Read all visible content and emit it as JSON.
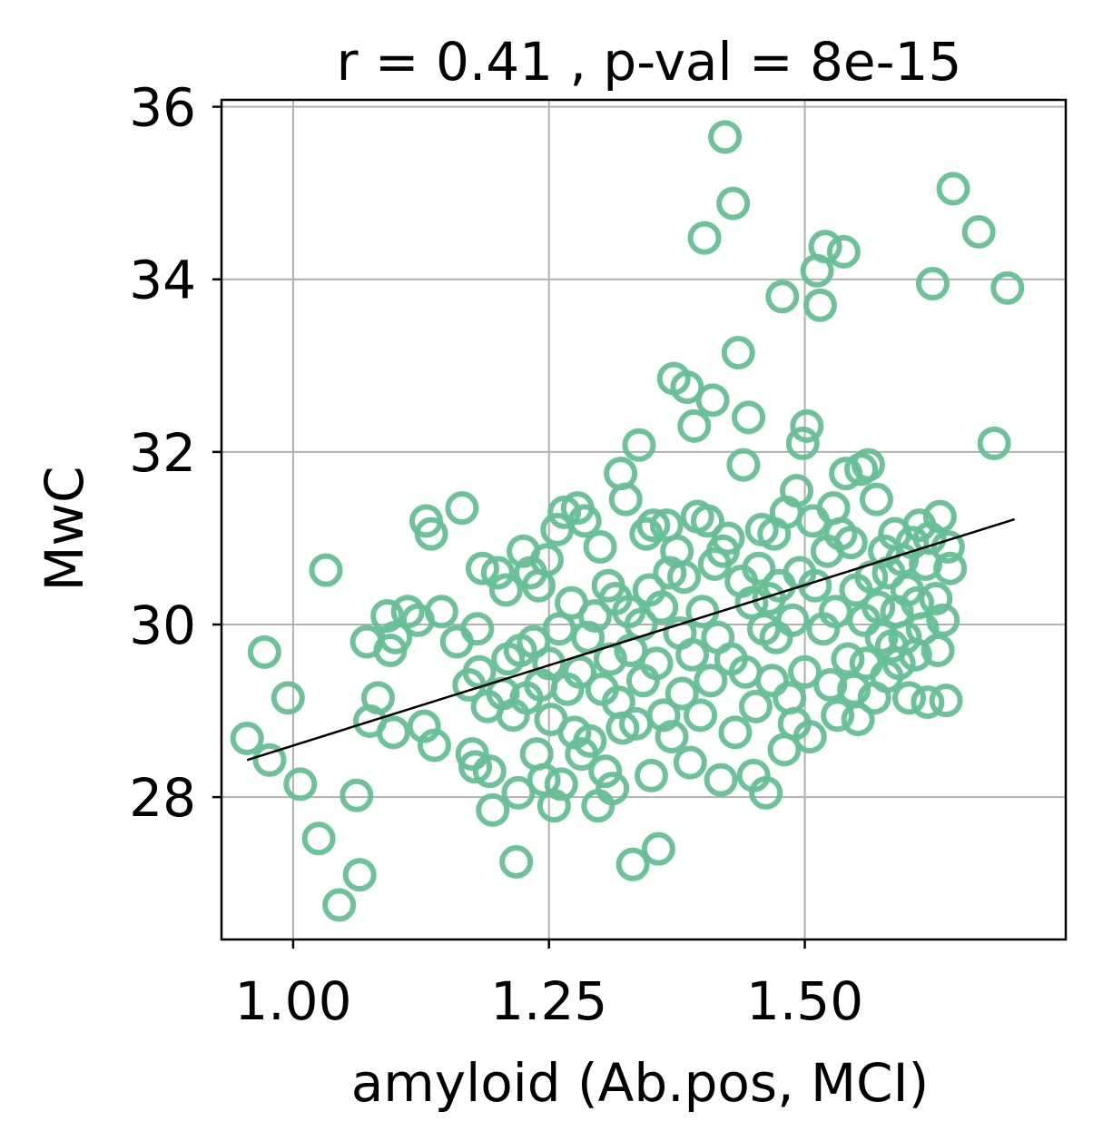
{
  "chart_data": {
    "type": "scatter",
    "title": "r = 0.41 , p-val = 8e-15",
    "xlabel": "amyloid (Ab.pos, MCI)",
    "ylabel": "MwC",
    "xlim": [
      0.93,
      1.755
    ],
    "ylim": [
      26.35,
      36.08
    ],
    "xticks": [
      1.0,
      1.25,
      1.5
    ],
    "xtick_labels": [
      "1.00",
      "1.25",
      "1.50"
    ],
    "yticks": [
      28,
      30,
      32,
      34,
      36
    ],
    "ytick_labels": [
      "28",
      "30",
      "32",
      "34",
      "36"
    ],
    "grid": true,
    "marker_color": "#66bf94",
    "line_color": "#000000",
    "fit_line": {
      "x": [
        0.955,
        1.705
      ],
      "y": [
        28.43,
        31.22
      ]
    },
    "points": [
      [
        0.955,
        28.68
      ],
      [
        0.972,
        29.68
      ],
      [
        0.977,
        28.43
      ],
      [
        0.995,
        29.15
      ],
      [
        1.007,
        28.15
      ],
      [
        1.025,
        27.52
      ],
      [
        1.032,
        30.63
      ],
      [
        1.045,
        26.75
      ],
      [
        1.062,
        28.02
      ],
      [
        1.065,
        27.1
      ],
      [
        1.072,
        29.8
      ],
      [
        1.075,
        28.88
      ],
      [
        1.083,
        29.15
      ],
      [
        1.092,
        30.1
      ],
      [
        1.095,
        29.7
      ],
      [
        1.098,
        28.75
      ],
      [
        1.1,
        29.85
      ],
      [
        1.112,
        30.15
      ],
      [
        1.122,
        30.05
      ],
      [
        1.128,
        28.82
      ],
      [
        1.13,
        31.2
      ],
      [
        1.135,
        31.05
      ],
      [
        1.138,
        28.6
      ],
      [
        1.145,
        30.15
      ],
      [
        1.16,
        29.8
      ],
      [
        1.165,
        31.35
      ],
      [
        1.172,
        29.3
      ],
      [
        1.175,
        28.5
      ],
      [
        1.178,
        28.35
      ],
      [
        1.18,
        29.95
      ],
      [
        1.182,
        29.45
      ],
      [
        1.185,
        30.65
      ],
      [
        1.19,
        29.05
      ],
      [
        1.192,
        28.3
      ],
      [
        1.195,
        27.85
      ],
      [
        1.2,
        30.6
      ],
      [
        1.205,
        29.2
      ],
      [
        1.208,
        30.4
      ],
      [
        1.21,
        29.6
      ],
      [
        1.215,
        28.95
      ],
      [
        1.218,
        27.25
      ],
      [
        1.22,
        28.05
      ],
      [
        1.222,
        29.7
      ],
      [
        1.225,
        30.85
      ],
      [
        1.228,
        29.15
      ],
      [
        1.232,
        30.6
      ],
      [
        1.235,
        29.8
      ],
      [
        1.238,
        28.5
      ],
      [
        1.24,
        30.45
      ],
      [
        1.242,
        29.3
      ],
      [
        1.245,
        28.2
      ],
      [
        1.248,
        30.75
      ],
      [
        1.25,
        29.55
      ],
      [
        1.252,
        28.9
      ],
      [
        1.255,
        27.9
      ],
      [
        1.258,
        31.1
      ],
      [
        1.26,
        29.95
      ],
      [
        1.262,
        28.15
      ],
      [
        1.265,
        31.3
      ],
      [
        1.268,
        29.25
      ],
      [
        1.272,
        30.25
      ],
      [
        1.275,
        28.75
      ],
      [
        1.278,
        31.35
      ],
      [
        1.28,
        29.45
      ],
      [
        1.282,
        28.5
      ],
      [
        1.285,
        31.2
      ],
      [
        1.288,
        29.85
      ],
      [
        1.29,
        28.65
      ],
      [
        1.295,
        30.1
      ],
      [
        1.298,
        27.9
      ],
      [
        1.3,
        30.9
      ],
      [
        1.302,
        29.25
      ],
      [
        1.305,
        28.3
      ],
      [
        1.308,
        30.45
      ],
      [
        1.31,
        29.6
      ],
      [
        1.312,
        28.1
      ],
      [
        1.315,
        30.3
      ],
      [
        1.318,
        29.1
      ],
      [
        1.32,
        31.75
      ],
      [
        1.322,
        28.8
      ],
      [
        1.325,
        31.45
      ],
      [
        1.328,
        30.15
      ],
      [
        1.33,
        29.7
      ],
      [
        1.332,
        27.22
      ],
      [
        1.335,
        28.85
      ],
      [
        1.338,
        32.08
      ],
      [
        1.34,
        30.0
      ],
      [
        1.342,
        29.35
      ],
      [
        1.345,
        31.05
      ],
      [
        1.348,
        30.4
      ],
      [
        1.35,
        28.25
      ],
      [
        1.352,
        31.15
      ],
      [
        1.355,
        29.55
      ],
      [
        1.357,
        27.4
      ],
      [
        1.36,
        30.2
      ],
      [
        1.362,
        28.95
      ],
      [
        1.365,
        31.15
      ],
      [
        1.368,
        30.6
      ],
      [
        1.37,
        28.7
      ],
      [
        1.372,
        32.85
      ],
      [
        1.375,
        30.85
      ],
      [
        1.378,
        29.9
      ],
      [
        1.38,
        29.2
      ],
      [
        1.382,
        30.55
      ],
      [
        1.385,
        32.75
      ],
      [
        1.388,
        28.4
      ],
      [
        1.39,
        29.65
      ],
      [
        1.392,
        32.3
      ],
      [
        1.395,
        31.25
      ],
      [
        1.398,
        28.95
      ],
      [
        1.4,
        30.15
      ],
      [
        1.402,
        34.48
      ],
      [
        1.405,
        31.2
      ],
      [
        1.408,
        29.35
      ],
      [
        1.41,
        32.6
      ],
      [
        1.412,
        30.7
      ],
      [
        1.415,
        29.85
      ],
      [
        1.418,
        28.2
      ],
      [
        1.42,
        30.85
      ],
      [
        1.422,
        35.65
      ],
      [
        1.425,
        31.0
      ],
      [
        1.428,
        29.6
      ],
      [
        1.43,
        34.88
      ],
      [
        1.432,
        28.75
      ],
      [
        1.435,
        33.15
      ],
      [
        1.438,
        30.5
      ],
      [
        1.44,
        31.85
      ],
      [
        1.442,
        29.45
      ],
      [
        1.445,
        32.4
      ],
      [
        1.448,
        30.25
      ],
      [
        1.45,
        28.25
      ],
      [
        1.452,
        29.05
      ],
      [
        1.455,
        30.65
      ],
      [
        1.458,
        31.1
      ],
      [
        1.46,
        29.95
      ],
      [
        1.462,
        28.05
      ],
      [
        1.465,
        30.3
      ],
      [
        1.468,
        29.35
      ],
      [
        1.47,
        31.05
      ],
      [
        1.472,
        29.85
      ],
      [
        1.475,
        30.45
      ],
      [
        1.478,
        33.8
      ],
      [
        1.48,
        28.55
      ],
      [
        1.482,
        31.3
      ],
      [
        1.485,
        29.15
      ],
      [
        1.488,
        30.05
      ],
      [
        1.49,
        28.85
      ],
      [
        1.492,
        31.55
      ],
      [
        1.495,
        30.6
      ],
      [
        1.498,
        32.1
      ],
      [
        1.5,
        29.45
      ],
      [
        1.502,
        32.3
      ],
      [
        1.505,
        28.7
      ],
      [
        1.508,
        31.2
      ],
      [
        1.51,
        30.45
      ],
      [
        1.512,
        34.1
      ],
      [
        1.515,
        33.7
      ],
      [
        1.518,
        29.95
      ],
      [
        1.52,
        34.38
      ],
      [
        1.522,
        30.85
      ],
      [
        1.525,
        29.3
      ],
      [
        1.528,
        31.35
      ],
      [
        1.53,
        30.15
      ],
      [
        1.532,
        28.95
      ],
      [
        1.535,
        31.05
      ],
      [
        1.538,
        34.32
      ],
      [
        1.54,
        31.75
      ],
      [
        1.542,
        29.6
      ],
      [
        1.545,
        30.95
      ],
      [
        1.548,
        29.25
      ],
      [
        1.55,
        30.4
      ],
      [
        1.552,
        28.9
      ],
      [
        1.555,
        31.8
      ],
      [
        1.558,
        30.05
      ],
      [
        1.56,
        29.55
      ],
      [
        1.562,
        31.85
      ],
      [
        1.565,
        30.55
      ],
      [
        1.568,
        29.15
      ],
      [
        1.57,
        31.45
      ],
      [
        1.572,
        30.2
      ],
      [
        1.575,
        29.85
      ],
      [
        1.578,
        30.85
      ],
      [
        1.58,
        29.4
      ],
      [
        1.582,
        30.6
      ],
      [
        1.585,
        29.75
      ],
      [
        1.588,
        31.05
      ],
      [
        1.59,
        30.15
      ],
      [
        1.592,
        29.55
      ],
      [
        1.595,
        30.75
      ],
      [
        1.598,
        29.85
      ],
      [
        1.6,
        30.4
      ],
      [
        1.602,
        29.15
      ],
      [
        1.605,
        30.95
      ],
      [
        1.608,
        29.65
      ],
      [
        1.61,
        30.25
      ],
      [
        1.612,
        31.15
      ],
      [
        1.615,
        29.95
      ],
      [
        1.618,
        30.7
      ],
      [
        1.62,
        29.1
      ],
      [
        1.622,
        31.0
      ],
      [
        1.625,
        33.95
      ],
      [
        1.628,
        30.3
      ],
      [
        1.63,
        29.7
      ],
      [
        1.632,
        31.25
      ],
      [
        1.635,
        30.05
      ],
      [
        1.638,
        29.12
      ],
      [
        1.64,
        30.9
      ],
      [
        1.642,
        30.65
      ],
      [
        1.645,
        35.05
      ],
      [
        1.67,
        34.55
      ],
      [
        1.685,
        32.1
      ],
      [
        1.698,
        33.9
      ]
    ]
  }
}
